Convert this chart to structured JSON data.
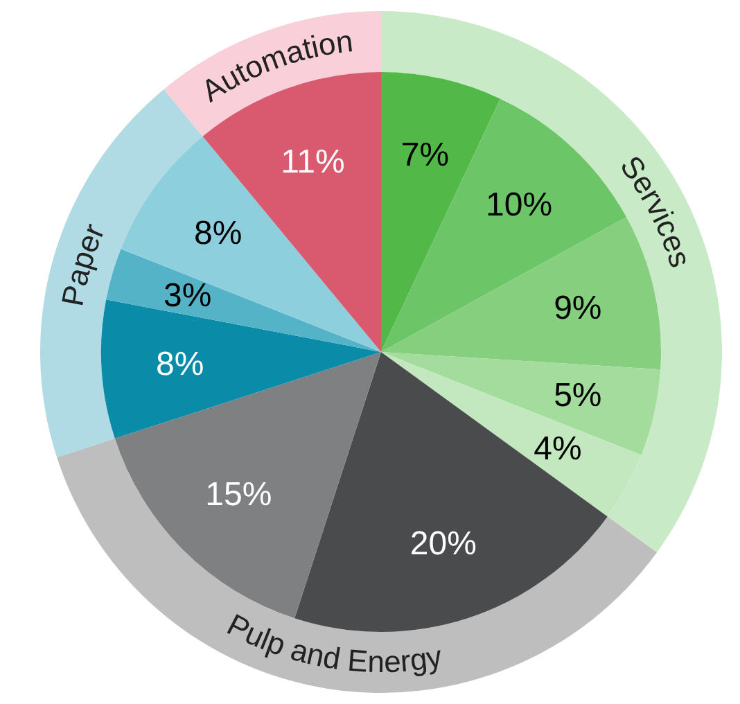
{
  "chart_data": [
    {
      "type": "donut",
      "categories": [
        "Services",
        "Pulp and Energy",
        "Paper",
        "Automation"
      ],
      "values": [
        35,
        35,
        19,
        11
      ],
      "colors": [
        "#c9eac6",
        "#bebebe",
        "#b0dbe4",
        "#f9cfd9"
      ]
    },
    {
      "type": "pie",
      "categories": [
        null,
        null,
        null,
        null,
        null,
        null,
        null,
        null,
        null,
        null,
        null
      ],
      "values": [
        7,
        10,
        9,
        5,
        4,
        20,
        15,
        8,
        3,
        8,
        11
      ],
      "value_labels": [
        "7%",
        "10%",
        "9%",
        "5%",
        "4%",
        "20%",
        "15%",
        "8%",
        "3%",
        "8%",
        "11%"
      ],
      "colors": [
        "#52b848",
        "#6cc566",
        "#85cf7f",
        "#a3dc9d",
        "#c3e8bf",
        "#4a4b4d",
        "#7f8082",
        "#0a8ca8",
        "#55b3c8",
        "#8ecfdd",
        "#d95a6e"
      ]
    }
  ]
}
